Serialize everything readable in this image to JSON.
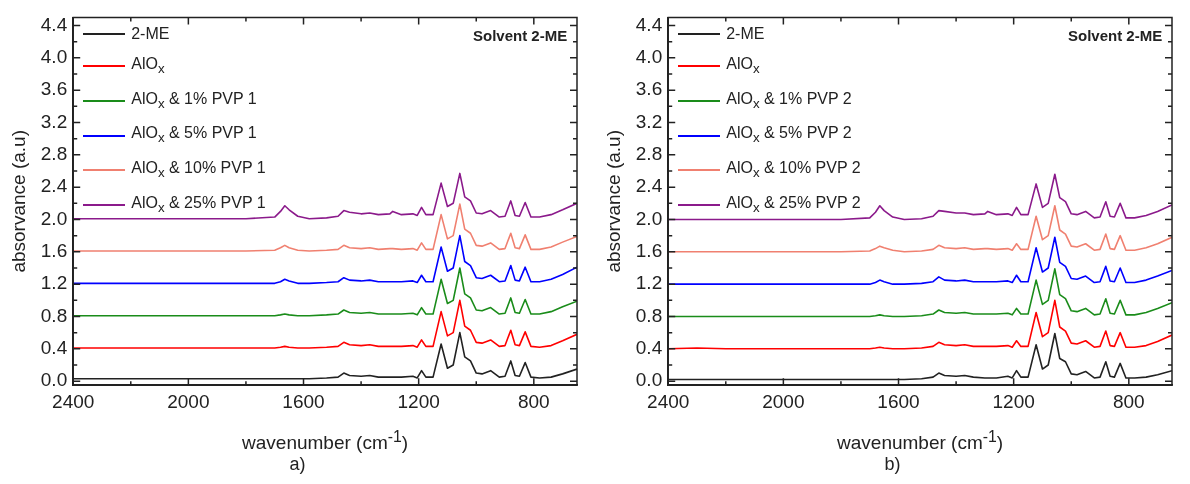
{
  "chart_data": [
    {
      "type": "line",
      "xlabel": "wavenumber (cm$^{-1}$)",
      "ylabel": "absorvance (a.u)",
      "annotations": [
        "Solvent 2-ME",
        "a)"
      ],
      "x": [
        2400,
        2300,
        2200,
        2000,
        1800,
        1700,
        1680,
        1665,
        1650,
        1620,
        1580,
        1520,
        1480,
        1460,
        1440,
        1400,
        1370,
        1340,
        1300,
        1290,
        1260,
        1220,
        1205,
        1190,
        1175,
        1150,
        1122,
        1100,
        1080,
        1057,
        1040,
        1020,
        1000,
        980,
        950,
        920,
        900,
        880,
        865,
        850,
        830,
        810,
        780,
        740,
        700,
        650
      ],
      "xlim": [
        2400,
        650
      ],
      "xticks": [
        2400,
        {
          "value": 2200,
          "label": null
        },
        2000,
        {
          "value": 1800,
          "label": null
        },
        1600,
        {
          "value": 1400,
          "label": null
        },
        1200,
        {
          "value": 1000,
          "label": null
        },
        800
      ],
      "ylim": [
        -0.05,
        4.5
      ],
      "yticks": [
        {
          "value": 0,
          "label": "0.0"
        },
        {
          "value": 0.2,
          "label": null
        },
        0.4,
        {
          "value": 0.6,
          "label": null
        },
        0.8,
        {
          "value": 1,
          "label": null
        },
        1.2,
        {
          "value": 1.4,
          "label": null
        },
        1.6,
        {
          "value": 1.8,
          "label": null
        },
        {
          "value": 2,
          "label": "2.0"
        },
        {
          "value": 2.2,
          "label": null
        },
        2.4,
        {
          "value": 2.6,
          "label": null
        },
        2.8,
        {
          "value": 3,
          "label": null
        },
        3.2,
        {
          "value": 3.4,
          "label": null
        },
        3.6,
        {
          "value": 3.8,
          "label": null
        },
        {
          "value": 4,
          "label": "4.0"
        },
        {
          "value": 4.2,
          "label": null
        },
        4.4
      ],
      "grid": false,
      "legend": "top left",
      "marker": "none",
      "line_style": "solid",
      "series": [
        {
          "name": "2-ME",
          "color": "#222222",
          "values": [
            0.03,
            0.03,
            0.03,
            0.03,
            0.03,
            0.03,
            0.03,
            0.03,
            0.03,
            0.03,
            0.03,
            0.04,
            0.05,
            0.1,
            0.07,
            0.06,
            0.07,
            0.05,
            0.05,
            0.05,
            0.05,
            0.06,
            0.04,
            0.13,
            0.05,
            0.05,
            0.46,
            0.16,
            0.2,
            0.6,
            0.3,
            0.25,
            0.1,
            0.09,
            0.13,
            0.05,
            0.06,
            0.25,
            0.07,
            0.06,
            0.23,
            0.05,
            0.04,
            0.05,
            0.09,
            0.15
          ]
        },
        {
          "name": "AlO$_{x}$",
          "color": "#ff0000",
          "values": [
            0.41,
            0.41,
            0.41,
            0.41,
            0.41,
            0.41,
            0.42,
            0.43,
            0.42,
            0.41,
            0.41,
            0.42,
            0.43,
            0.48,
            0.45,
            0.44,
            0.45,
            0.43,
            0.43,
            0.43,
            0.43,
            0.44,
            0.42,
            0.51,
            0.43,
            0.43,
            0.86,
            0.56,
            0.6,
            1.0,
            0.68,
            0.63,
            0.48,
            0.47,
            0.51,
            0.43,
            0.44,
            0.63,
            0.45,
            0.44,
            0.61,
            0.43,
            0.42,
            0.44,
            0.5,
            0.58
          ]
        },
        {
          "name": "AlO$_{x}$ & 1% PVP 1",
          "color": "#1a8c1a",
          "values": [
            0.81,
            0.81,
            0.81,
            0.81,
            0.81,
            0.81,
            0.82,
            0.83,
            0.82,
            0.81,
            0.81,
            0.82,
            0.83,
            0.88,
            0.85,
            0.84,
            0.85,
            0.83,
            0.83,
            0.83,
            0.83,
            0.84,
            0.82,
            0.91,
            0.83,
            0.83,
            1.26,
            0.96,
            1.0,
            1.4,
            1.08,
            1.03,
            0.88,
            0.87,
            0.91,
            0.83,
            0.84,
            1.03,
            0.85,
            0.84,
            1.01,
            0.83,
            0.83,
            0.86,
            0.92,
            0.99
          ]
        },
        {
          "name": "AlO$_{x}$ & 5% PVP 1",
          "color": "#0000ff",
          "values": [
            1.21,
            1.21,
            1.21,
            1.21,
            1.21,
            1.21,
            1.23,
            1.26,
            1.24,
            1.21,
            1.21,
            1.22,
            1.23,
            1.28,
            1.25,
            1.24,
            1.25,
            1.23,
            1.23,
            1.23,
            1.23,
            1.24,
            1.22,
            1.31,
            1.23,
            1.23,
            1.66,
            1.36,
            1.4,
            1.8,
            1.48,
            1.43,
            1.28,
            1.27,
            1.31,
            1.23,
            1.24,
            1.43,
            1.25,
            1.24,
            1.41,
            1.23,
            1.23,
            1.26,
            1.32,
            1.41
          ]
        },
        {
          "name": "AlO$_{x}$ & 10% PVP 1",
          "color": "#f08070",
          "values": [
            1.61,
            1.61,
            1.61,
            1.61,
            1.61,
            1.62,
            1.65,
            1.68,
            1.65,
            1.62,
            1.61,
            1.62,
            1.63,
            1.68,
            1.65,
            1.64,
            1.65,
            1.63,
            1.64,
            1.64,
            1.63,
            1.64,
            1.62,
            1.71,
            1.63,
            1.63,
            2.06,
            1.76,
            1.8,
            2.19,
            1.88,
            1.83,
            1.68,
            1.67,
            1.71,
            1.63,
            1.64,
            1.83,
            1.65,
            1.64,
            1.81,
            1.63,
            1.63,
            1.66,
            1.72,
            1.79
          ]
        },
        {
          "name": "AlO$_{x}$ & 25% PVP 1",
          "color": "#8b1a8b",
          "values": [
            2.01,
            2.01,
            2.01,
            2.01,
            2.01,
            2.03,
            2.1,
            2.17,
            2.12,
            2.04,
            2.01,
            2.02,
            2.04,
            2.11,
            2.09,
            2.07,
            2.08,
            2.06,
            2.07,
            2.1,
            2.06,
            2.07,
            2.05,
            2.15,
            2.06,
            2.06,
            2.45,
            2.16,
            2.2,
            2.57,
            2.28,
            2.23,
            2.08,
            2.07,
            2.11,
            2.03,
            2.04,
            2.23,
            2.05,
            2.04,
            2.21,
            2.03,
            2.03,
            2.06,
            2.12,
            2.2
          ]
        }
      ]
    },
    {
      "type": "line",
      "xlabel": "wavenumber (cm$^{-1}$)",
      "ylabel": "absorvance (a.u)",
      "annotations": [
        "Solvent 2-ME",
        "b)"
      ],
      "x": [
        2400,
        2300,
        2200,
        2000,
        1800,
        1700,
        1680,
        1665,
        1650,
        1620,
        1580,
        1520,
        1480,
        1460,
        1440,
        1400,
        1370,
        1340,
        1300,
        1290,
        1260,
        1220,
        1205,
        1190,
        1175,
        1150,
        1122,
        1100,
        1080,
        1057,
        1040,
        1020,
        1000,
        980,
        950,
        920,
        900,
        880,
        865,
        850,
        830,
        810,
        780,
        740,
        700,
        650
      ],
      "xlim": [
        2400,
        650
      ],
      "xticks": [
        2400,
        {
          "value": 2200,
          "label": null
        },
        2000,
        {
          "value": 1800,
          "label": null
        },
        1600,
        {
          "value": 1400,
          "label": null
        },
        1200,
        {
          "value": 1000,
          "label": null
        },
        800
      ],
      "ylim": [
        -0.05,
        4.5
      ],
      "yticks": [
        {
          "value": 0,
          "label": "0.0"
        },
        {
          "value": 0.2,
          "label": null
        },
        0.4,
        {
          "value": 0.6,
          "label": null
        },
        0.8,
        {
          "value": 1,
          "label": null
        },
        1.2,
        {
          "value": 1.4,
          "label": null
        },
        1.6,
        {
          "value": 1.8,
          "label": null
        },
        {
          "value": 2,
          "label": "2.0"
        },
        {
          "value": 2.2,
          "label": null
        },
        2.4,
        {
          "value": 2.6,
          "label": null
        },
        2.8,
        {
          "value": 3,
          "label": null
        },
        3.2,
        {
          "value": 3.4,
          "label": null
        },
        3.6,
        {
          "value": 3.8,
          "label": null
        },
        {
          "value": 4,
          "label": "4.0"
        },
        {
          "value": 4.2,
          "label": null
        },
        4.4
      ],
      "grid": false,
      "legend": "top left",
      "marker": "none",
      "line_style": "solid",
      "series": [
        {
          "name": "2-ME",
          "color": "#222222",
          "values": [
            0.02,
            0.02,
            0.02,
            0.02,
            0.02,
            0.02,
            0.02,
            0.02,
            0.02,
            0.02,
            0.02,
            0.03,
            0.05,
            0.1,
            0.07,
            0.06,
            0.07,
            0.05,
            0.04,
            0.04,
            0.04,
            0.06,
            0.04,
            0.13,
            0.05,
            0.05,
            0.45,
            0.15,
            0.2,
            0.59,
            0.28,
            0.24,
            0.09,
            0.08,
            0.12,
            0.04,
            0.05,
            0.24,
            0.06,
            0.05,
            0.22,
            0.04,
            0.04,
            0.05,
            0.08,
            0.13
          ]
        },
        {
          "name": "AlO$_{x}$",
          "color": "#ff0000",
          "values": [
            0.4,
            0.41,
            0.4,
            0.4,
            0.4,
            0.4,
            0.41,
            0.42,
            0.41,
            0.4,
            0.4,
            0.41,
            0.43,
            0.48,
            0.45,
            0.44,
            0.45,
            0.43,
            0.43,
            0.43,
            0.43,
            0.44,
            0.42,
            0.5,
            0.43,
            0.43,
            0.85,
            0.55,
            0.6,
            1.0,
            0.67,
            0.62,
            0.47,
            0.46,
            0.5,
            0.42,
            0.43,
            0.62,
            0.44,
            0.43,
            0.6,
            0.42,
            0.42,
            0.44,
            0.49,
            0.57
          ]
        },
        {
          "name": "AlO$_{x}$ & 1% PVP 2",
          "color": "#1a8c1a",
          "values": [
            0.8,
            0.8,
            0.8,
            0.8,
            0.8,
            0.8,
            0.81,
            0.82,
            0.81,
            0.8,
            0.8,
            0.81,
            0.83,
            0.88,
            0.85,
            0.84,
            0.85,
            0.83,
            0.83,
            0.83,
            0.83,
            0.84,
            0.82,
            0.9,
            0.83,
            0.83,
            1.25,
            0.95,
            1.0,
            1.39,
            1.07,
            1.02,
            0.87,
            0.86,
            0.9,
            0.82,
            0.83,
            1.02,
            0.84,
            0.83,
            1.0,
            0.82,
            0.82,
            0.85,
            0.9,
            0.97
          ]
        },
        {
          "name": "AlO$_{x}$ & 5% PVP 2",
          "color": "#0000ff",
          "values": [
            1.2,
            1.2,
            1.2,
            1.2,
            1.2,
            1.2,
            1.22,
            1.25,
            1.23,
            1.2,
            1.2,
            1.21,
            1.23,
            1.29,
            1.25,
            1.24,
            1.25,
            1.23,
            1.23,
            1.23,
            1.23,
            1.24,
            1.22,
            1.31,
            1.23,
            1.23,
            1.65,
            1.35,
            1.4,
            1.78,
            1.47,
            1.42,
            1.27,
            1.26,
            1.3,
            1.22,
            1.23,
            1.42,
            1.24,
            1.23,
            1.4,
            1.22,
            1.22,
            1.25,
            1.3,
            1.37
          ]
        },
        {
          "name": "AlO$_{x}$ & 10% PVP 2",
          "color": "#f08070",
          "values": [
            1.6,
            1.6,
            1.6,
            1.6,
            1.6,
            1.61,
            1.64,
            1.67,
            1.65,
            1.62,
            1.6,
            1.61,
            1.63,
            1.68,
            1.65,
            1.64,
            1.65,
            1.63,
            1.64,
            1.64,
            1.63,
            1.64,
            1.62,
            1.7,
            1.63,
            1.63,
            2.04,
            1.75,
            1.8,
            2.17,
            1.87,
            1.82,
            1.67,
            1.66,
            1.7,
            1.62,
            1.63,
            1.82,
            1.64,
            1.63,
            1.8,
            1.62,
            1.62,
            1.65,
            1.7,
            1.78
          ]
        },
        {
          "name": "AlO$_{x}$ & 25% PVP 2",
          "color": "#8b1a8b",
          "values": [
            2.0,
            2.0,
            2.0,
            2.0,
            2.0,
            2.02,
            2.09,
            2.17,
            2.11,
            2.03,
            2.0,
            2.01,
            2.04,
            2.11,
            2.1,
            2.08,
            2.08,
            2.06,
            2.07,
            2.1,
            2.06,
            2.07,
            2.05,
            2.15,
            2.06,
            2.06,
            2.44,
            2.15,
            2.2,
            2.56,
            2.27,
            2.22,
            2.07,
            2.06,
            2.1,
            2.02,
            2.03,
            2.22,
            2.04,
            2.03,
            2.2,
            2.02,
            2.02,
            2.05,
            2.1,
            2.18
          ]
        }
      ]
    }
  ]
}
